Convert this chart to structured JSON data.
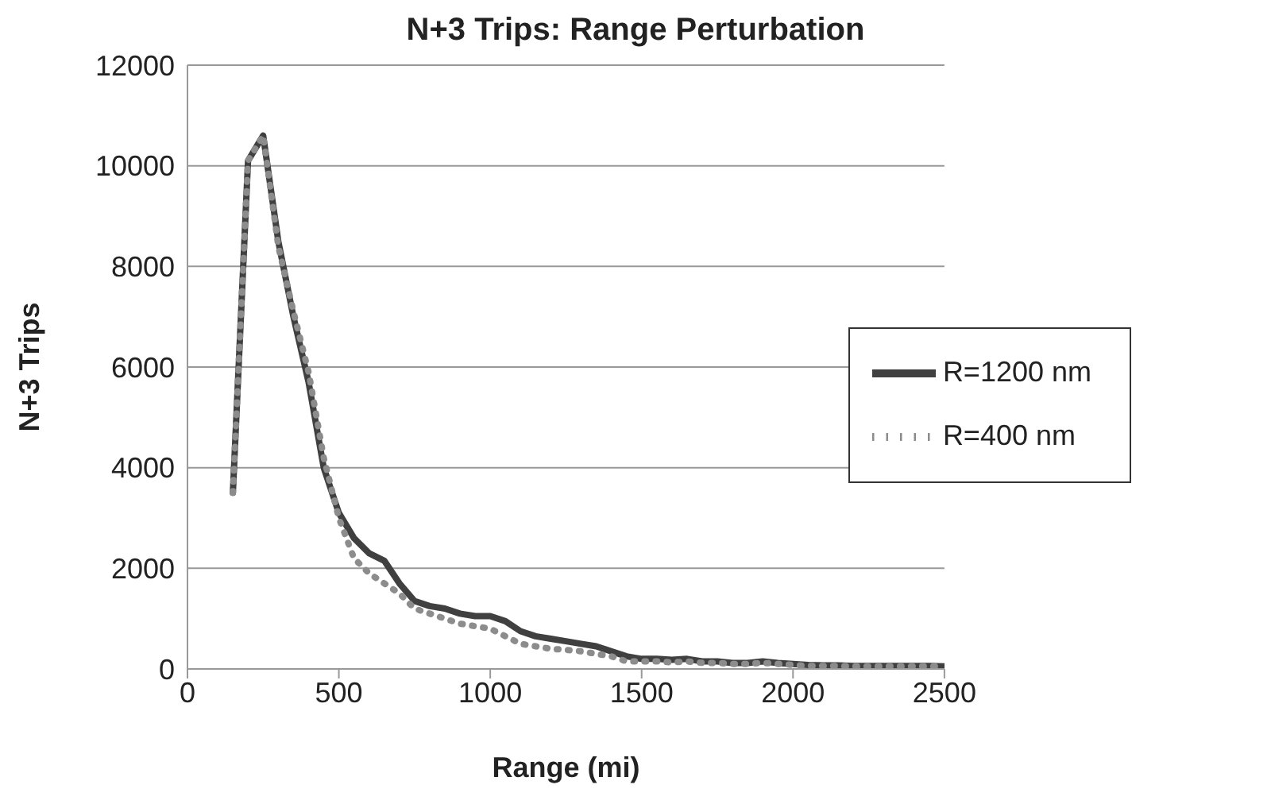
{
  "chart_data": {
    "type": "line",
    "title": "N+3 Trips: Range Perturbation",
    "xlabel": "Range (mi)",
    "ylabel": "N+3 Trips",
    "x": [
      150,
      200,
      250,
      300,
      350,
      400,
      450,
      500,
      550,
      600,
      650,
      700,
      750,
      800,
      850,
      900,
      950,
      1000,
      1050,
      1100,
      1150,
      1200,
      1250,
      1300,
      1350,
      1400,
      1450,
      1500,
      1550,
      1600,
      1650,
      1700,
      1750,
      1800,
      1850,
      1900,
      1950,
      2000,
      2050,
      2100,
      2150,
      2200,
      2250,
      2300,
      2350,
      2400,
      2450,
      2500
    ],
    "series": [
      {
        "name": "R=1200 nm",
        "color": "#404040",
        "line_style": "solid",
        "values": [
          3500,
          10100,
          10600,
          8500,
          7000,
          5700,
          4000,
          3100,
          2600,
          2300,
          2150,
          1700,
          1350,
          1250,
          1200,
          1100,
          1050,
          1050,
          950,
          750,
          650,
          600,
          550,
          500,
          450,
          350,
          250,
          200,
          200,
          180,
          200,
          150,
          150,
          120,
          120,
          150,
          120,
          100,
          80,
          70,
          70,
          60,
          60,
          60,
          60,
          60,
          60,
          50
        ]
      },
      {
        "name": "R=400 nm",
        "color": "#8c8c8c",
        "line_style": "dotted",
        "values": [
          3500,
          10100,
          10600,
          8400,
          7100,
          5900,
          4200,
          3000,
          2200,
          1900,
          1700,
          1500,
          1200,
          1100,
          1000,
          900,
          850,
          800,
          650,
          500,
          450,
          400,
          380,
          350,
          300,
          250,
          150,
          150,
          150,
          130,
          150,
          120,
          120,
          100,
          100,
          120,
          100,
          80,
          60,
          60,
          60,
          50,
          50,
          50,
          50,
          50,
          50,
          50
        ]
      }
    ],
    "xlim": [
      0,
      2500
    ],
    "xticks": [
      0,
      500,
      1000,
      1500,
      2000,
      2500
    ],
    "ylim": [
      0,
      12000
    ],
    "yticks": [
      0,
      2000,
      4000,
      6000,
      8000,
      10000,
      12000
    ],
    "grid": "y",
    "legend": "right",
    "marker": "none"
  }
}
